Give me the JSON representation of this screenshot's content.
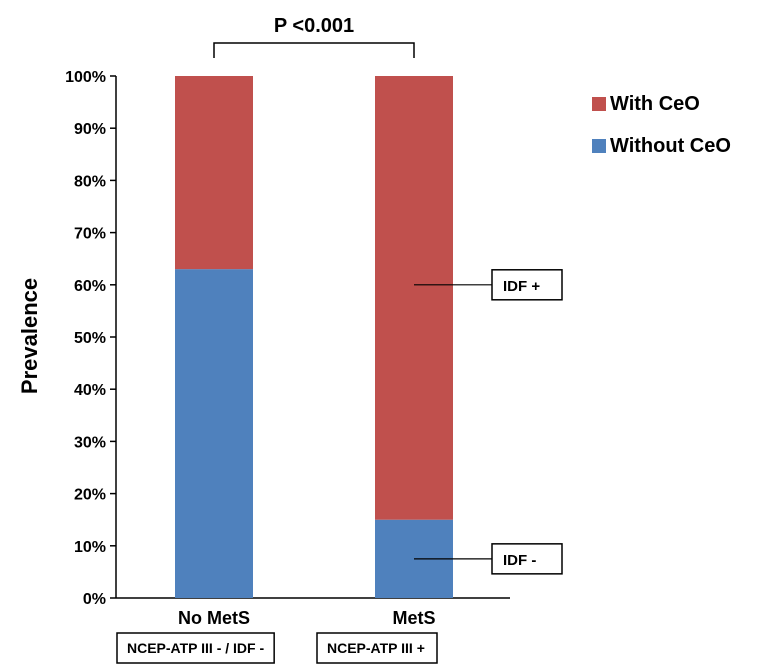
{
  "chart_data": {
    "type": "bar",
    "stacked": true,
    "percent_axis": true,
    "title": "P <0.001",
    "ylabel": "Prevalence",
    "xlabel": "",
    "ylim": [
      0,
      100
    ],
    "yticks": [
      "0%",
      "10%",
      "20%",
      "30%",
      "40%",
      "50%",
      "60%",
      "70%",
      "80%",
      "90%",
      "100%"
    ],
    "categories": [
      "No MetS",
      "MetS"
    ],
    "category_sublabels": [
      "NCEP-ATP III - / IDF -",
      "NCEP-ATP III +"
    ],
    "series": [
      {
        "name": "Without CeO",
        "color": "#4f81bd",
        "values": [
          63,
          15
        ]
      },
      {
        "name": "With CeO",
        "color": "#c0504d",
        "values": [
          37,
          85
        ]
      }
    ],
    "legend_position": "top-right",
    "grid": false,
    "annotations": [
      {
        "label": "IDF +",
        "category": "MetS",
        "y": 60
      },
      {
        "label": "IDF -",
        "category": "MetS",
        "y": 7.5
      }
    ]
  }
}
